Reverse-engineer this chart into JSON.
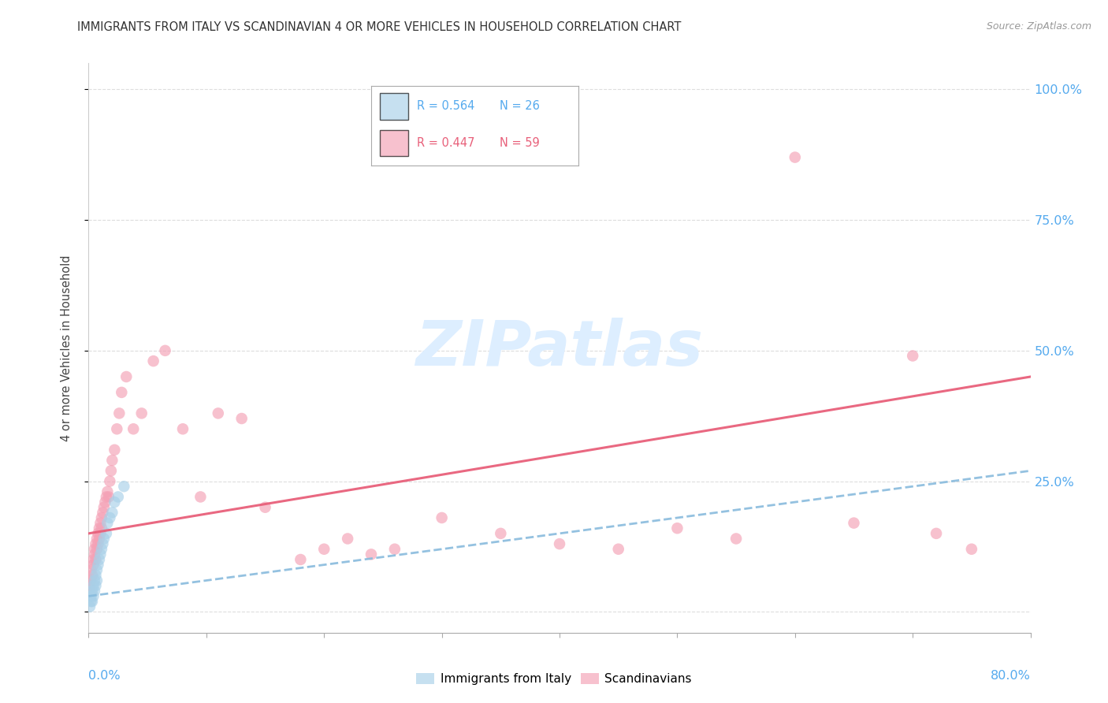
{
  "title": "IMMIGRANTS FROM ITALY VS SCANDINAVIAN 4 OR MORE VEHICLES IN HOUSEHOLD CORRELATION CHART",
  "source": "Source: ZipAtlas.com",
  "ylabel": "4 or more Vehicles in Household",
  "xmin": 0.0,
  "xmax": 0.8,
  "ymin": -0.04,
  "ymax": 1.05,
  "ytick_vals": [
    0.0,
    0.25,
    0.5,
    0.75,
    1.0
  ],
  "ytick_labels": [
    "",
    "25.0%",
    "50.0%",
    "75.0%",
    "100.0%"
  ],
  "italy_R": 0.564,
  "italy_N": 26,
  "scand_R": 0.447,
  "scand_N": 59,
  "italy_color": "#a8d0e8",
  "scand_color": "#f4a0b5",
  "italy_line_color": "#88bbdd",
  "scand_line_color": "#e8607a",
  "watermark_color": "#ddeeff",
  "legend_italy_label": "Immigrants from Italy",
  "legend_scand_label": "Scandinavians",
  "italy_x": [
    0.001,
    0.002,
    0.002,
    0.003,
    0.003,
    0.004,
    0.004,
    0.005,
    0.005,
    0.006,
    0.006,
    0.007,
    0.007,
    0.008,
    0.009,
    0.01,
    0.011,
    0.012,
    0.013,
    0.015,
    0.016,
    0.018,
    0.02,
    0.022,
    0.025,
    0.03
  ],
  "italy_y": [
    0.01,
    0.02,
    0.03,
    0.02,
    0.04,
    0.03,
    0.05,
    0.04,
    0.06,
    0.05,
    0.07,
    0.06,
    0.08,
    0.09,
    0.1,
    0.11,
    0.12,
    0.13,
    0.14,
    0.15,
    0.17,
    0.18,
    0.19,
    0.21,
    0.22,
    0.24
  ],
  "scand_x": [
    0.001,
    0.002,
    0.002,
    0.003,
    0.004,
    0.004,
    0.005,
    0.005,
    0.006,
    0.006,
    0.007,
    0.007,
    0.008,
    0.008,
    0.009,
    0.009,
    0.01,
    0.01,
    0.011,
    0.011,
    0.012,
    0.013,
    0.014,
    0.015,
    0.016,
    0.017,
    0.018,
    0.019,
    0.02,
    0.022,
    0.024,
    0.026,
    0.028,
    0.032,
    0.038,
    0.045,
    0.055,
    0.065,
    0.08,
    0.095,
    0.11,
    0.13,
    0.15,
    0.18,
    0.2,
    0.22,
    0.24,
    0.26,
    0.3,
    0.35,
    0.4,
    0.45,
    0.5,
    0.55,
    0.6,
    0.65,
    0.7,
    0.72,
    0.75
  ],
  "scand_y": [
    0.05,
    0.06,
    0.08,
    0.07,
    0.09,
    0.1,
    0.11,
    0.12,
    0.1,
    0.13,
    0.12,
    0.14,
    0.13,
    0.15,
    0.14,
    0.16,
    0.15,
    0.17,
    0.16,
    0.18,
    0.19,
    0.2,
    0.21,
    0.22,
    0.23,
    0.22,
    0.25,
    0.27,
    0.29,
    0.31,
    0.35,
    0.38,
    0.42,
    0.45,
    0.35,
    0.38,
    0.48,
    0.5,
    0.35,
    0.22,
    0.38,
    0.37,
    0.2,
    0.1,
    0.12,
    0.14,
    0.11,
    0.12,
    0.18,
    0.15,
    0.13,
    0.12,
    0.16,
    0.14,
    0.87,
    0.17,
    0.49,
    0.15,
    0.12
  ]
}
